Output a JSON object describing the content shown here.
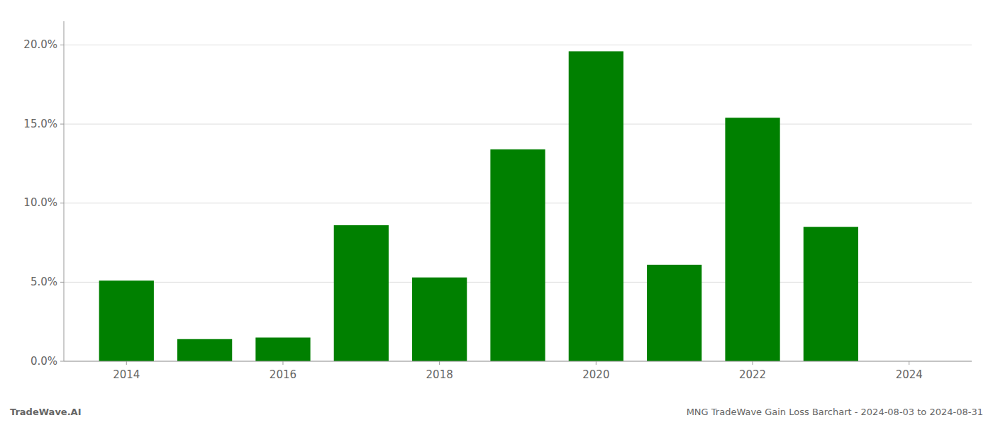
{
  "chart_data": {
    "type": "bar",
    "x": [
      2014,
      2015,
      2016,
      2017,
      2018,
      2019,
      2020,
      2021,
      2022,
      2023,
      2024
    ],
    "values": [
      0.051,
      0.014,
      0.015,
      0.086,
      0.053,
      0.134,
      0.196,
      0.061,
      0.154,
      0.085,
      0.0
    ],
    "color": "#008000",
    "xlim": [
      2013.2,
      2024.8
    ],
    "xticks": [
      2014,
      2016,
      2018,
      2020,
      2022,
      2024
    ],
    "ylim": [
      0,
      0.215
    ],
    "yticks": [
      {
        "value": 0.0,
        "label": "0.0%"
      },
      {
        "value": 0.05,
        "label": "5.0%"
      },
      {
        "value": 0.1,
        "label": "10.0%"
      },
      {
        "value": 0.15,
        "label": "15.0%"
      },
      {
        "value": 0.2,
        "label": "20.0%"
      }
    ],
    "grid": true,
    "annotations": [
      "TradeWave.AI",
      "MNG TradeWave Gain Loss Barchart - 2024-08-03 to 2024-08-31"
    ]
  }
}
